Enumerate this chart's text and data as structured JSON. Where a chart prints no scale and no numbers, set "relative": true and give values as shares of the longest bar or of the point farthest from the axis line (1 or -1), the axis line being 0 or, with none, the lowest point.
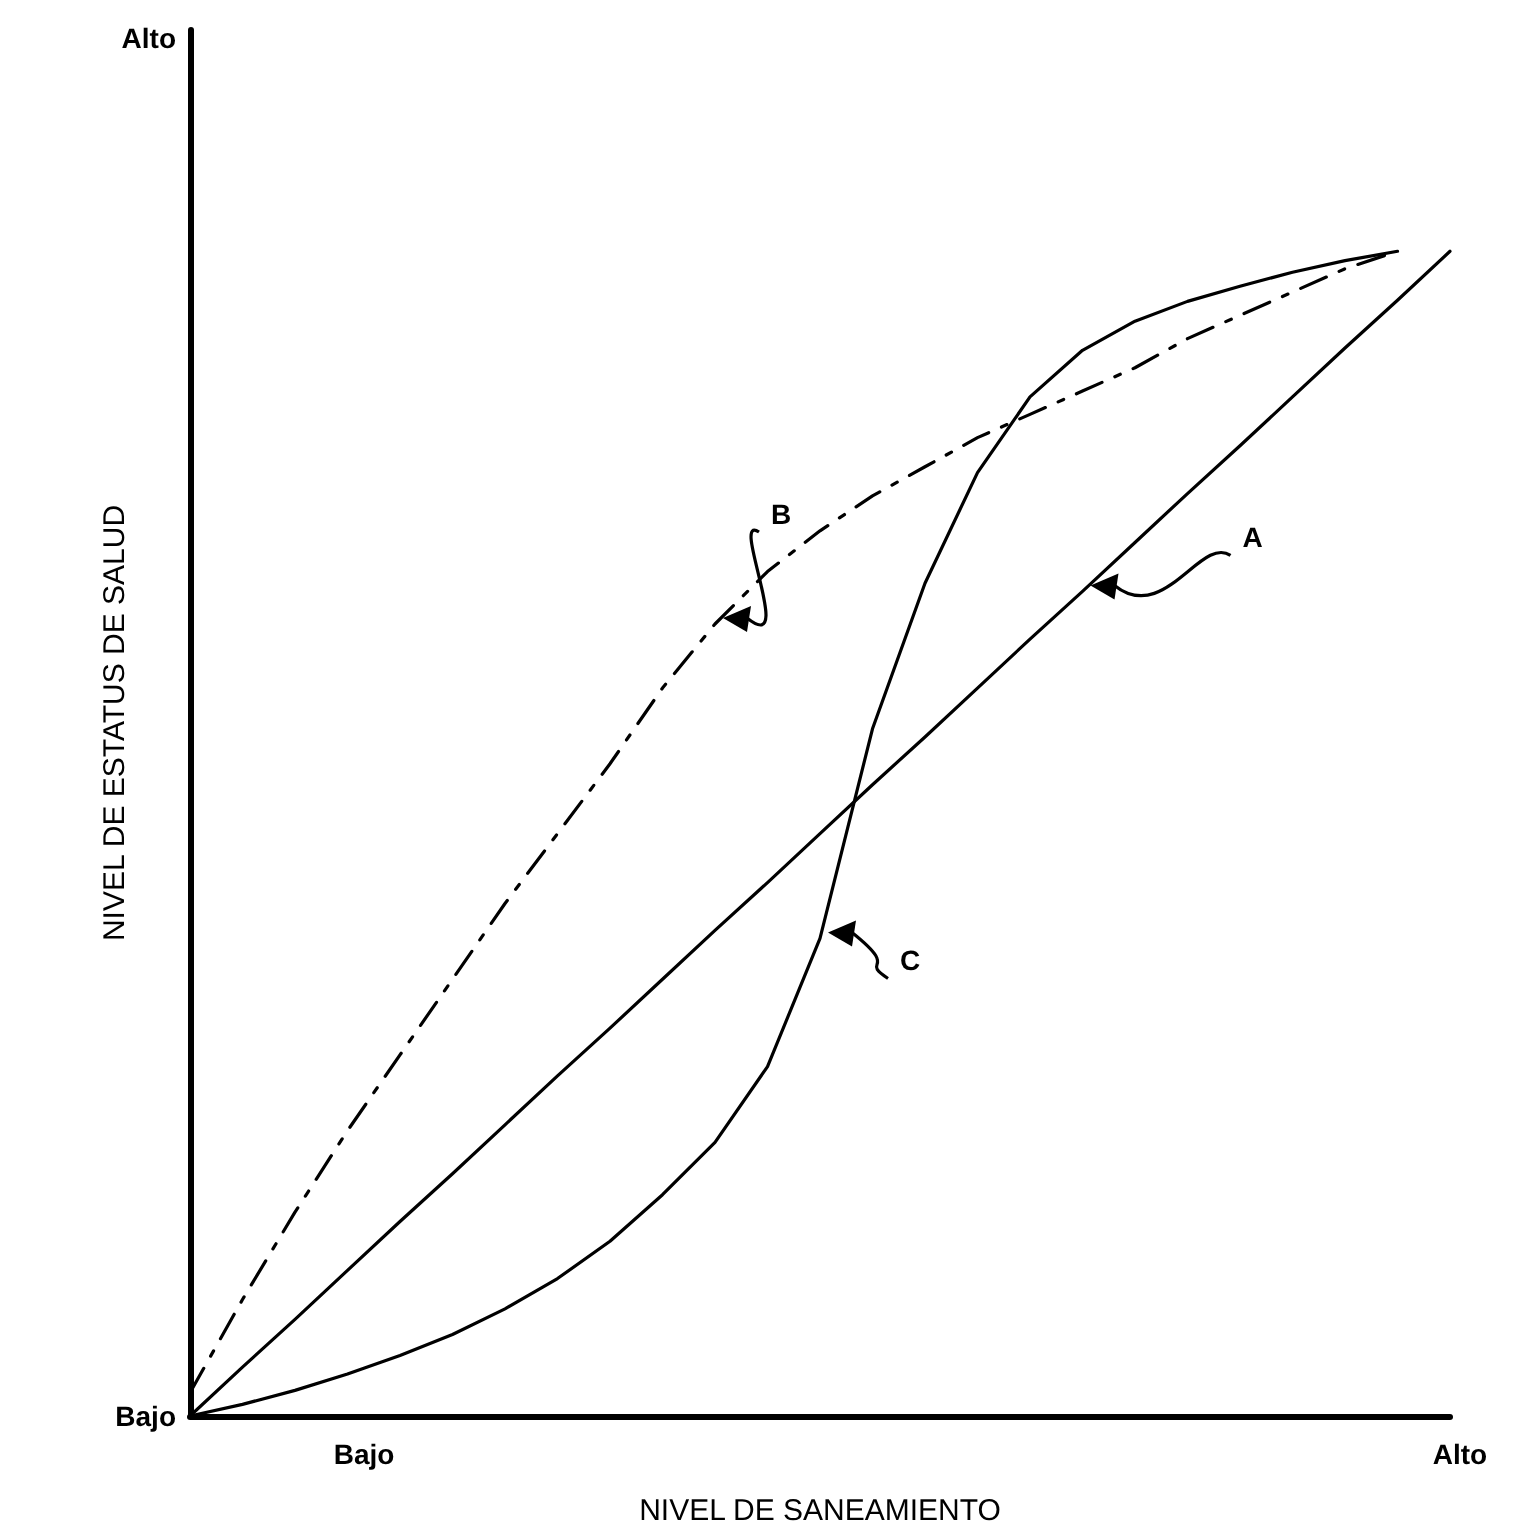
{
  "chart_data": {
    "type": "line",
    "relative": true,
    "xlabel": "NIVEL DE SANEAMIENTO",
    "ylabel": "NIVEL DE ESTATUS DE SALUD",
    "annotations": [
      "Alto",
      "Bajo",
      "Bajo",
      "Alto"
    ],
    "marker": "none",
    "categories": [
      null,
      null,
      null,
      null,
      null,
      null,
      null,
      null,
      null,
      null,
      null,
      null,
      null,
      null,
      null,
      null,
      null,
      null,
      null,
      null,
      null,
      null,
      null,
      null,
      null
    ],
    "series": [
      {
        "name": "A",
        "color": "#000000",
        "line_style": "solid",
        "values": [
          0,
          0.042,
          0.083,
          0.125,
          0.167,
          0.208,
          0.25,
          0.292,
          0.333,
          0.375,
          0.417,
          0.458,
          0.5,
          0.542,
          0.583,
          0.625,
          0.667,
          0.708,
          0.75,
          0.792,
          0.833,
          0.875,
          0.917,
          0.958,
          1
        ]
      },
      {
        "name": "B",
        "color": "#000000",
        "line_style": "dashed",
        "values": [
          0.02,
          0.1,
          0.175,
          0.245,
          0.31,
          0.375,
          0.44,
          0.5,
          0.56,
          0.625,
          0.68,
          0.725,
          0.76,
          0.79,
          0.815,
          0.84,
          0.86,
          0.88,
          0.9,
          0.925,
          0.945,
          0.965,
          0.985,
          1,
          null
        ]
      },
      {
        "name": "C",
        "color": "#000000",
        "line_style": "solid",
        "values": [
          0,
          0.01,
          0.022,
          0.036,
          0.052,
          0.07,
          0.092,
          0.118,
          0.15,
          0.19,
          0.235,
          0.3,
          0.41,
          0.59,
          0.715,
          0.81,
          0.875,
          0.915,
          0.94,
          0.957,
          0.97,
          0.982,
          0.992,
          1,
          null
        ]
      }
    ]
  }
}
